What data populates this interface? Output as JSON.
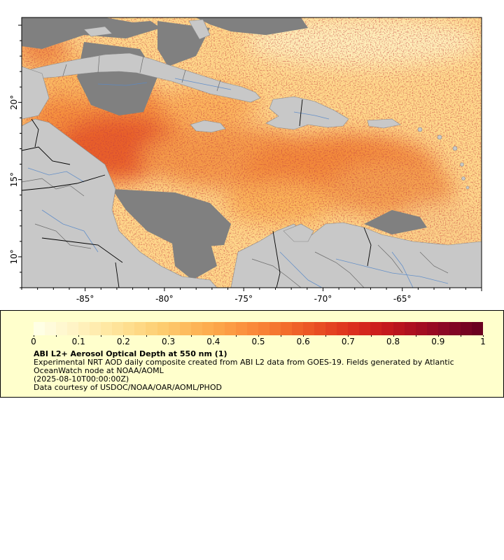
{
  "map": {
    "lat_ticks": [
      {
        "label": "20°",
        "value": 20
      },
      {
        "label": "15°",
        "value": 15
      },
      {
        "label": "10°",
        "value": 10
      }
    ],
    "lon_ticks": [
      {
        "label": "-85°",
        "value": -85
      },
      {
        "label": "-80°",
        "value": -80
      },
      {
        "label": "-75°",
        "value": -75
      },
      {
        "label": "-70°",
        "value": -70
      },
      {
        "label": "-65°",
        "value": -65
      }
    ],
    "lat_range": [
      8,
      25.5
    ],
    "lon_range": [
      -89,
      -60
    ],
    "colors": {
      "land": "#c8c8c8",
      "no_data": "#808080",
      "border": "#000000",
      "subdivision": "#6a6a6a",
      "river": "#5a8ac8"
    }
  },
  "legend": {
    "title": "ABI L2+ Aerosol Optical Depth at 550 nm (1)",
    "line1": "Experimental NRT AOD daily composite created from ABI L2 data from GOES-19. Fields generated by Atlantic OceanWatch node at NOAA/AOML",
    "line2": "(2025-08-10T00:00:00Z)",
    "line3": "Data courtesy of USDOC/NOAA/OAR/AOML/PHOD",
    "colorbar_min": 0,
    "colorbar_max": 1,
    "colorbar_ticks": [
      "0",
      "0.1",
      "0.2",
      "0.3",
      "0.4",
      "0.5",
      "0.6",
      "0.7",
      "0.8",
      "0.9",
      "1"
    ],
    "colorbar_colors": [
      "#ffffe5",
      "#fff5c8",
      "#ffeaa8",
      "#fedc8a",
      "#fdcb6e",
      "#fdb556",
      "#fc9f45",
      "#f98637",
      "#f26a2a",
      "#e84c22",
      "#dc2f1e",
      "#c81a1d",
      "#a90e20",
      "#8a0725",
      "#6b0020"
    ]
  }
}
